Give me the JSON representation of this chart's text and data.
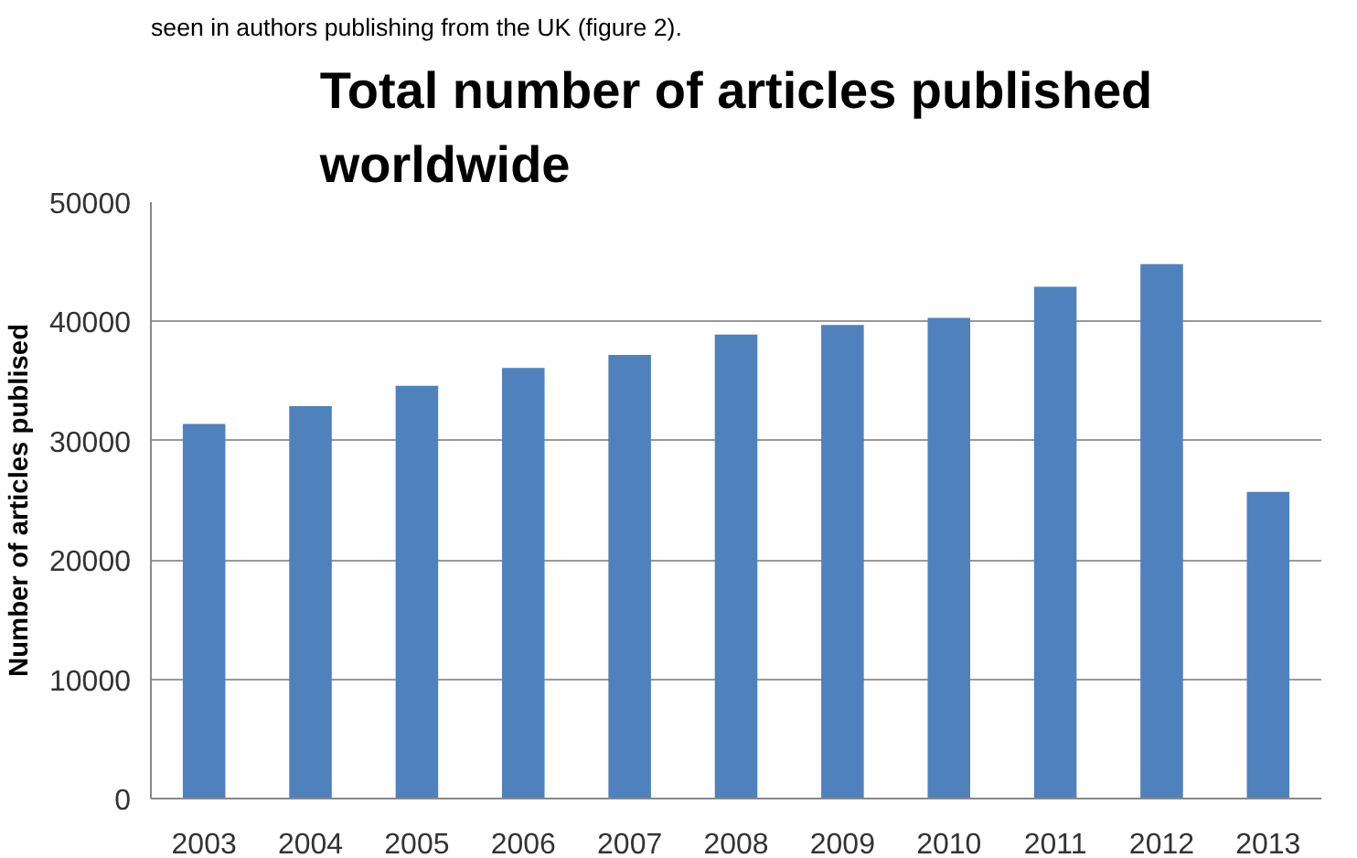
{
  "chart_data": {
    "type": "bar",
    "title": "Total number of articles published worldwide",
    "ylabel": "Number of articles publised",
    "annotations": [
      "seen in authors publishing from the UK (figure 2)."
    ],
    "categories": [
      "2003",
      "2004",
      "2005",
      "2006",
      "2007",
      "2008",
      "2009",
      "2010",
      "2011",
      "2012",
      "2013"
    ],
    "values": [
      31400,
      32900,
      34600,
      36100,
      37200,
      38900,
      39700,
      40300,
      42900,
      44800,
      25700
    ],
    "color": "#4f81bd",
    "ylim": [
      0,
      50000
    ],
    "yticks": [
      0,
      10000,
      20000,
      30000,
      40000,
      50000
    ],
    "grid": "y"
  }
}
